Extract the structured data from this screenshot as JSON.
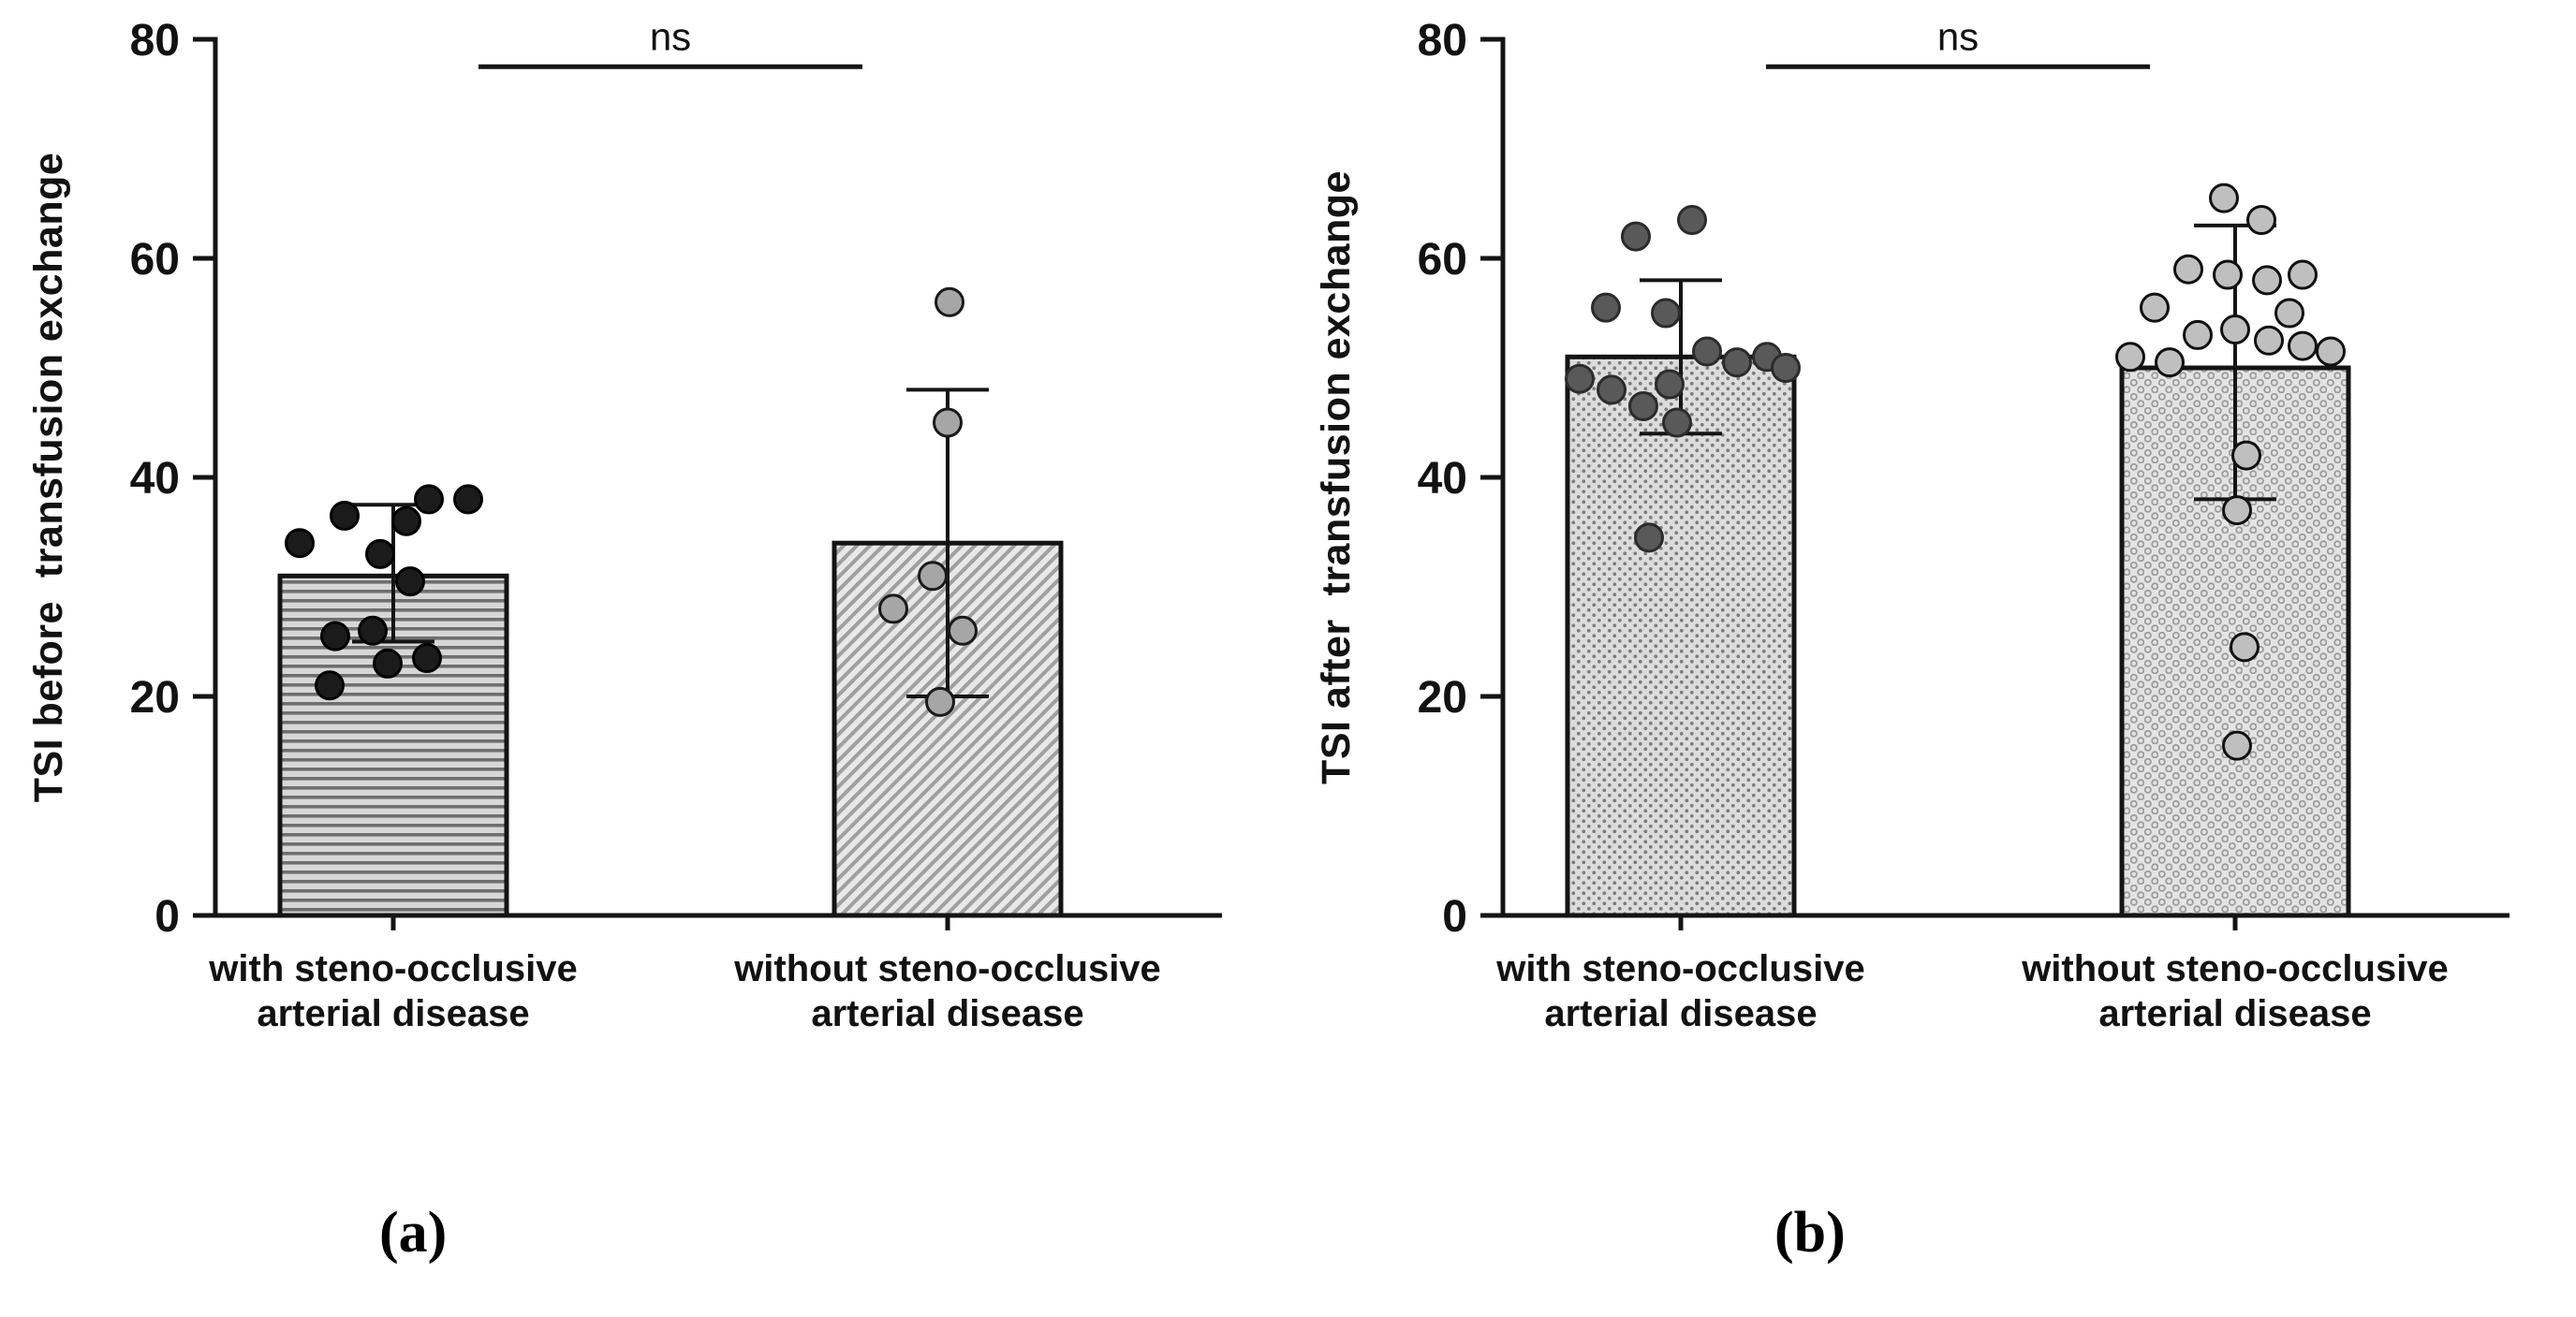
{
  "figure": {
    "panels": [
      {
        "label": "(a)"
      },
      {
        "label": "(b)"
      }
    ]
  },
  "chart_data": [
    {
      "type": "bar",
      "panel": "a",
      "title": "",
      "ylabel": "TSI before  transfusion exchange",
      "xlabel": "",
      "ylim": [
        0,
        80
      ],
      "yticks": [
        0,
        20,
        40,
        60,
        80
      ],
      "grid": false,
      "legend": "none",
      "significance": "ns",
      "significance_y": 77.5,
      "categories": [
        "with steno-occlusive arterial disease",
        "without steno-occlusive arterial disease"
      ],
      "category_lines": [
        [
          "with steno-occlusive",
          "arterial disease"
        ],
        [
          "without steno-occlusive",
          "arterial disease"
        ]
      ],
      "series": [
        {
          "name": "with steno-occlusive arterial disease",
          "mean": 31,
          "error_low": 25,
          "error_high": 37.5,
          "pattern": "horizontal-lines",
          "bar_bg": "#d7d7d7",
          "bar_fg": "#6f6f6f",
          "dot_fill": "#1b1b1b",
          "dot_stroke": "#000000",
          "points": [
            [
              -100,
              34
            ],
            [
              -52,
              36.5
            ],
            [
              -14,
              33
            ],
            [
              38,
              38
            ],
            [
              80,
              38
            ],
            [
              14,
              36
            ],
            [
              -62,
              25.5
            ],
            [
              -22,
              26
            ],
            [
              18,
              30.5
            ],
            [
              -68,
              21
            ],
            [
              -6,
              23
            ],
            [
              36,
              23.5
            ]
          ]
        },
        {
          "name": "without steno-occlusive arterial disease",
          "mean": 34,
          "error_low": 20,
          "error_high": 48,
          "pattern": "diagonal-lines",
          "bar_bg": "#e8e8e8",
          "bar_fg": "#a0a0a0",
          "dot_fill": "#a6a6a6",
          "dot_stroke": "#1a1a1a",
          "points": [
            [
              2,
              56
            ],
            [
              0,
              45
            ],
            [
              -58,
              28
            ],
            [
              -16,
              31
            ],
            [
              16,
              26
            ],
            [
              -8,
              19.5
            ]
          ]
        }
      ]
    },
    {
      "type": "bar",
      "panel": "b",
      "title": "",
      "ylabel": "TSI after  transfusion exchange",
      "xlabel": "",
      "ylim": [
        0,
        80
      ],
      "yticks": [
        0,
        20,
        40,
        60,
        80
      ],
      "grid": false,
      "legend": "none",
      "significance": "ns",
      "significance_y": 77.5,
      "categories": [
        "with steno-occlusive arterial disease",
        "without steno-occlusive arterial disease"
      ],
      "category_lines": [
        [
          "with steno-occlusive",
          "arterial disease"
        ],
        [
          "without steno-occlusive",
          "arterial disease"
        ]
      ],
      "series": [
        {
          "name": "with steno-occlusive arterial disease",
          "mean": 51,
          "error_low": 44,
          "error_high": 58,
          "pattern": "dot-grid",
          "bar_bg": "#dcdcdc",
          "bar_fg": "#7d7d7d",
          "dot_fill": "#595959",
          "dot_stroke": "#2b2b2b",
          "points": [
            [
              -48,
              62
            ],
            [
              12,
              63.5
            ],
            [
              -80,
              55.5
            ],
            [
              -16,
              55
            ],
            [
              -108,
              49
            ],
            [
              -74,
              48
            ],
            [
              -40,
              46.5
            ],
            [
              -4,
              45
            ],
            [
              -12,
              48.5
            ],
            [
              28,
              51.5
            ],
            [
              60,
              50.5
            ],
            [
              92,
              51
            ],
            [
              112,
              50
            ],
            [
              -34,
              34.5
            ]
          ]
        },
        {
          "name": "without steno-occlusive arterial disease",
          "mean": 50,
          "error_low": 38,
          "error_high": 63,
          "pattern": "circle-grid",
          "bar_bg": "#e3e3e3",
          "bar_fg": "#9c9c9c",
          "dot_fill": "#bfbfbf",
          "dot_stroke": "#111111",
          "points": [
            [
              -12,
              65.5
            ],
            [
              28,
              63.5
            ],
            [
              -50,
              59
            ],
            [
              -8,
              58.5
            ],
            [
              34,
              58
            ],
            [
              72,
              58.5
            ],
            [
              -86,
              55.5
            ],
            [
              58,
              55
            ],
            [
              -40,
              53
            ],
            [
              0,
              53.5
            ],
            [
              36,
              52.5
            ],
            [
              72,
              52
            ],
            [
              102,
              51.5
            ],
            [
              -112,
              51
            ],
            [
              -70,
              50.5
            ],
            [
              12,
              42
            ],
            [
              2,
              37
            ],
            [
              10,
              24.5
            ],
            [
              2,
              15.5
            ]
          ]
        }
      ]
    }
  ]
}
